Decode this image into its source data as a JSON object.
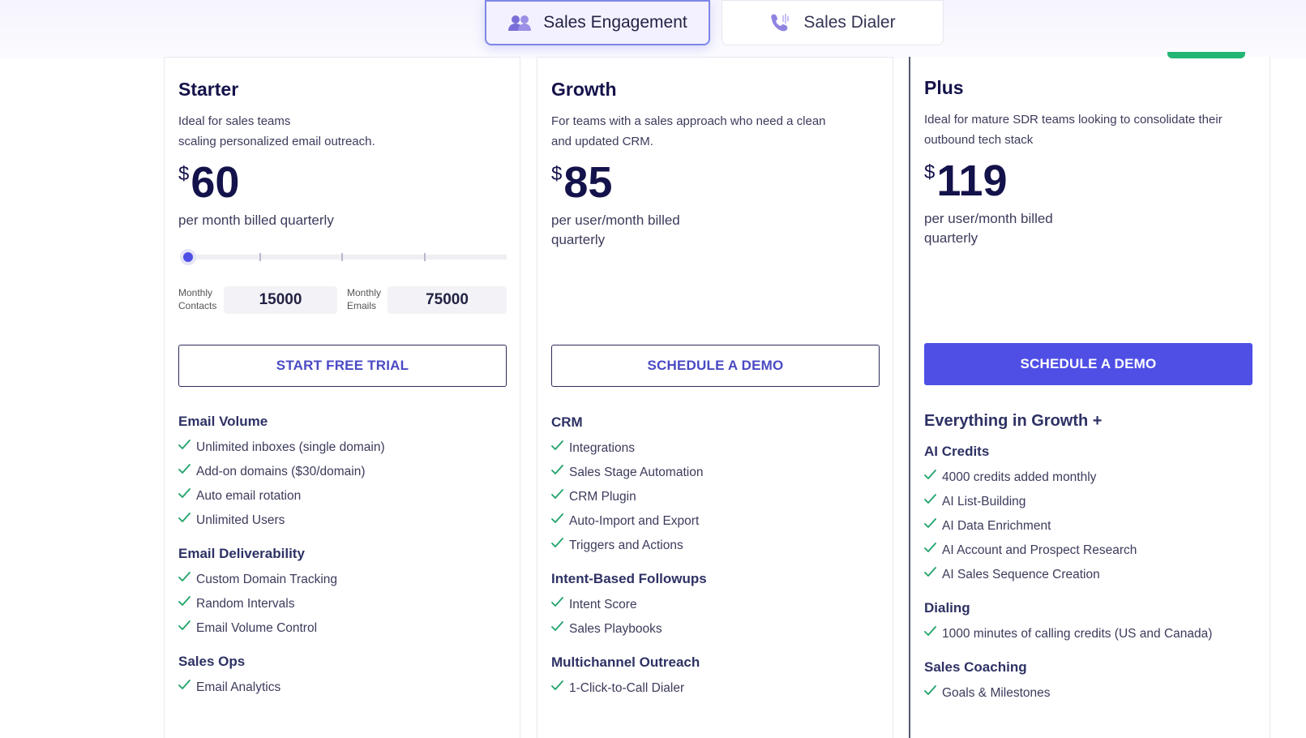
{
  "tabs": [
    {
      "label": "Sales Engagement"
    },
    {
      "label": "Sales Dialer"
    }
  ],
  "plans": [
    {
      "name": "Starter",
      "description": [
        "Ideal for sales teams",
        "scaling personalized email outreach."
      ],
      "currency": "$",
      "price": 60,
      "billing": [
        "per month billed quarterly"
      ],
      "usage": {
        "contacts_label": "Monthly Contacts",
        "contacts": 15000,
        "emails_label": "Monthly Emails",
        "emails": 75000
      },
      "cta": "START FREE TRIAL",
      "sections": [
        {
          "title": "Email Volume",
          "items": [
            "Unlimited inboxes (single domain)",
            "Add-on domains ($30/domain)",
            "Auto email rotation",
            "Unlimited Users"
          ]
        },
        {
          "title": "Email Deliverability",
          "items": [
            "Custom Domain Tracking",
            "Random Intervals",
            "Email Volume Control"
          ]
        },
        {
          "title": "Sales Ops",
          "items": [
            "Email Analytics"
          ]
        }
      ]
    },
    {
      "name": "Growth",
      "description": [
        "For teams with a sales approach who need a clean",
        "and updated CRM."
      ],
      "currency": "$",
      "price": 85,
      "billing": [
        "per user/month billed",
        "quarterly"
      ],
      "cta": "SCHEDULE A DEMO",
      "sections": [
        {
          "title": "CRM",
          "items": [
            "Integrations",
            "Sales Stage Automation",
            "CRM Plugin",
            "Auto-Import and Export",
            "Triggers and Actions"
          ]
        },
        {
          "title": "Intent-Based Followups",
          "items": [
            "Intent Score",
            "Sales Playbooks"
          ]
        },
        {
          "title": "Multichannel Outreach",
          "items": [
            "1-Click-to-Call Dialer"
          ]
        }
      ]
    },
    {
      "name": "Plus",
      "description": [
        "Ideal for mature SDR teams looking to consolidate their",
        "outbound tech stack"
      ],
      "currency": "$",
      "price": 119,
      "billing": [
        "per user/month billed",
        "quarterly"
      ],
      "cta": "SCHEDULE A DEMO",
      "intro": "Everything in Growth +",
      "sections": [
        {
          "title": "AI Credits",
          "items": [
            "4000 credits added monthly",
            "AI List-Building",
            "AI Data Enrichment",
            "AI Account and Prospect Research",
            "AI Sales Sequence Creation"
          ]
        },
        {
          "title": "Dialing",
          "items": [
            "1000 minutes of calling credits (US and Canada)"
          ]
        },
        {
          "title": "Sales Coaching",
          "items": [
            "Goals & Milestones"
          ]
        }
      ]
    }
  ]
}
